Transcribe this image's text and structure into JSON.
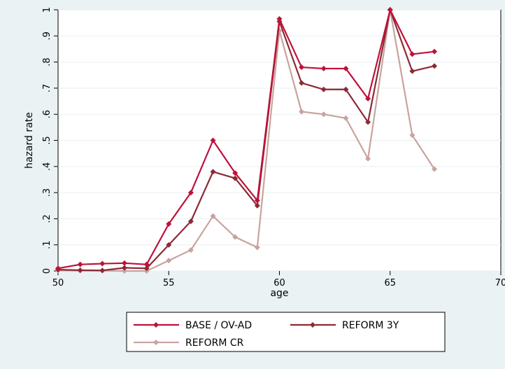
{
  "chart_data": {
    "type": "line",
    "xlabel": "age",
    "ylabel": "hazard rate",
    "xlim": [
      50,
      70
    ],
    "ylim": [
      0,
      1
    ],
    "x_ticks": [
      "50",
      "55",
      "60",
      "65",
      "70"
    ],
    "y_ticks": [
      "0",
      ".1",
      ".2",
      ".3",
      ".4",
      ".5",
      ".6",
      ".7",
      ".8",
      ".9",
      "1"
    ],
    "grid": "horizontal",
    "legend_position": "bottom",
    "x": [
      50,
      51,
      52,
      53,
      54,
      55,
      56,
      57,
      58,
      59,
      60,
      61,
      62,
      63,
      64,
      65,
      66,
      67
    ],
    "series": [
      {
        "name": "BASE / OV-AD",
        "color": "#c0103a",
        "values": [
          0.01,
          0.025,
          0.028,
          0.03,
          0.025,
          0.18,
          0.3,
          0.5,
          0.375,
          0.27,
          0.965,
          0.78,
          0.775,
          0.775,
          0.66,
          1.0,
          0.83,
          0.84
        ]
      },
      {
        "name": "REFORM 3Y",
        "color": "#8c2a35",
        "values": [
          0.005,
          0.003,
          0.002,
          0.012,
          0.01,
          0.1,
          0.19,
          0.38,
          0.355,
          0.25,
          0.955,
          0.72,
          0.695,
          0.695,
          0.57,
          1.0,
          0.765,
          0.785
        ]
      },
      {
        "name": "REFORM CR",
        "color": "#c9a39e",
        "values": [
          0.002,
          0.001,
          0.001,
          0.0,
          0.0,
          0.04,
          0.08,
          0.21,
          0.13,
          0.09,
          0.92,
          0.61,
          0.6,
          0.585,
          0.43,
          1.0,
          0.52,
          0.39
        ]
      }
    ]
  }
}
